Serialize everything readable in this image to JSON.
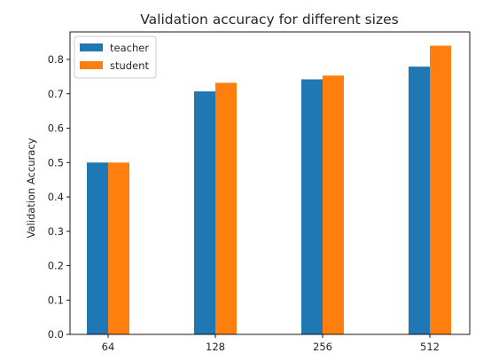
{
  "chart_data": {
    "type": "bar",
    "title": "Validation accuracy for different sizes",
    "xlabel": "",
    "ylabel": "Validation Accuracy",
    "categories": [
      "64",
      "128",
      "256",
      "512"
    ],
    "series": [
      {
        "name": "teacher",
        "color": "#1f77b4",
        "values": [
          0.5,
          0.707,
          0.742,
          0.779
        ]
      },
      {
        "name": "student",
        "color": "#ff7f0e",
        "values": [
          0.5,
          0.732,
          0.753,
          0.84
        ]
      }
    ],
    "ylim": [
      0.0,
      0.88
    ],
    "yticks": [
      "0.0",
      "0.1",
      "0.2",
      "0.3",
      "0.4",
      "0.5",
      "0.6",
      "0.7",
      "0.8"
    ],
    "grid": false,
    "legend": "top-left"
  }
}
